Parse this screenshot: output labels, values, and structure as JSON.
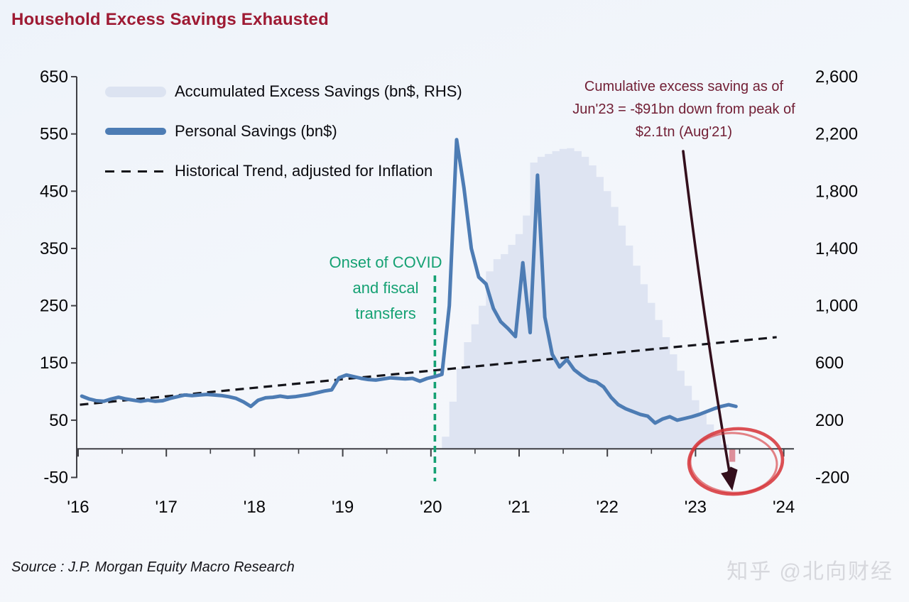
{
  "title": "Household Excess Savings Exhausted",
  "source": "Source : J.P. Morgan Equity Macro Research",
  "watermark": "知乎 @北向财经",
  "legend": {
    "items": [
      {
        "label": "Accumulated Excess Savings (bn$, RHS)",
        "swatch": "area"
      },
      {
        "label": "Personal Savings (bn$)",
        "swatch": "line"
      },
      {
        "label": "Historical Trend, adjusted for Inflation",
        "swatch": "dash"
      }
    ]
  },
  "annotations": {
    "covid": {
      "text": "Onset of COVID and fiscal transfers",
      "line_x": 2020.045,
      "color": "#15a173"
    },
    "exhaustion": {
      "text": "Cumulative excess saving as of Jun'23 = -$91bn down from peak of $2.1tn (Aug'21)",
      "color": "#722036",
      "arrow_color": "#330f1c",
      "circle_color": "#d63136"
    }
  },
  "colors": {
    "title": "#9e1a33",
    "area": "#dce3f1",
    "line": "#4d7cb4",
    "trend": "#14141a",
    "axis": "#3f3f44",
    "tick_text": "#050507",
    "negative_bar": "#dd8f9a",
    "green_line": "#15a173"
  },
  "chart_data": {
    "type": "line",
    "title": "Household Excess Savings Exhausted",
    "x_axis": {
      "range": [
        2016,
        2024.1
      ],
      "ticks": [
        2016,
        2017,
        2018,
        2019,
        2020,
        2021,
        2022,
        2023,
        2024
      ],
      "tick_labels": [
        "'16",
        "'17",
        "'18",
        "'19",
        "'20",
        "'21",
        "'22",
        "'23",
        "'24"
      ],
      "minor_ticks_every_half_year": true
    },
    "y_left": {
      "range": [
        -50,
        650
      ],
      "ticks": [
        650,
        550,
        450,
        350,
        250,
        150,
        50,
        -50
      ],
      "tick_labels": [
        "650",
        "550",
        "450",
        "350",
        "250",
        "150",
        "50",
        "-50"
      ]
    },
    "y_right": {
      "range": [
        -200,
        2600
      ],
      "ticks": [
        2600,
        2200,
        1800,
        1400,
        1000,
        600,
        200,
        -200
      ],
      "tick_labels": [
        "2,600",
        "2,200",
        "1,800",
        "1,400",
        "1,000",
        "600",
        "200",
        "-200"
      ],
      "scale_vs_left": 4
    },
    "series": [
      {
        "name": "Accumulated Excess Savings (bn$, RHS)",
        "type": "step-area",
        "axis": "right",
        "start_year": 2020,
        "start_month": 3,
        "values": [
          85,
          330,
          560,
          745,
          870,
          1000,
          1240,
          1325,
          1360,
          1425,
          1500,
          1630,
          2000,
          2040,
          2060,
          2080,
          2095,
          2100,
          2080,
          2040,
          1980,
          1900,
          1800,
          1690,
          1560,
          1420,
          1280,
          1150,
          1020,
          900,
          780,
          660,
          545,
          440,
          340,
          250,
          170,
          100,
          30,
          -91
        ],
        "peak": {
          "label": "peak of $2.1tn (Aug'21)",
          "value": 2100
        },
        "last_point": {
          "label": "Jun'23",
          "value": -91
        }
      },
      {
        "name": "Personal Savings (bn$)",
        "type": "line",
        "axis": "left",
        "start_year": 2016,
        "start_month": 1,
        "values": [
          92,
          87,
          84,
          83,
          87,
          90,
          87,
          85,
          83,
          85,
          83,
          84,
          88,
          91,
          94,
          93,
          94,
          95,
          94,
          93,
          91,
          88,
          82,
          74,
          85,
          89,
          90,
          92,
          90,
          91,
          93,
          95,
          98,
          101,
          103,
          124,
          129,
          126,
          123,
          121,
          120,
          122,
          124,
          123,
          122,
          123,
          118,
          123,
          126,
          130,
          250,
          540,
          455,
          350,
          300,
          288,
          245,
          222,
          210,
          196,
          325,
          203,
          478,
          230,
          165,
          143,
          156,
          138,
          128,
          120,
          117,
          108,
          90,
          77,
          70,
          65,
          60,
          57,
          45,
          52,
          56,
          50,
          53,
          56,
          60,
          65,
          70,
          74,
          77,
          74
        ]
      },
      {
        "name": "Historical Trend, adjusted for Inflation",
        "type": "dashed-line",
        "axis": "left",
        "points": [
          [
            2016.02,
            77
          ],
          [
            2023.92,
            195
          ]
        ]
      }
    ]
  }
}
